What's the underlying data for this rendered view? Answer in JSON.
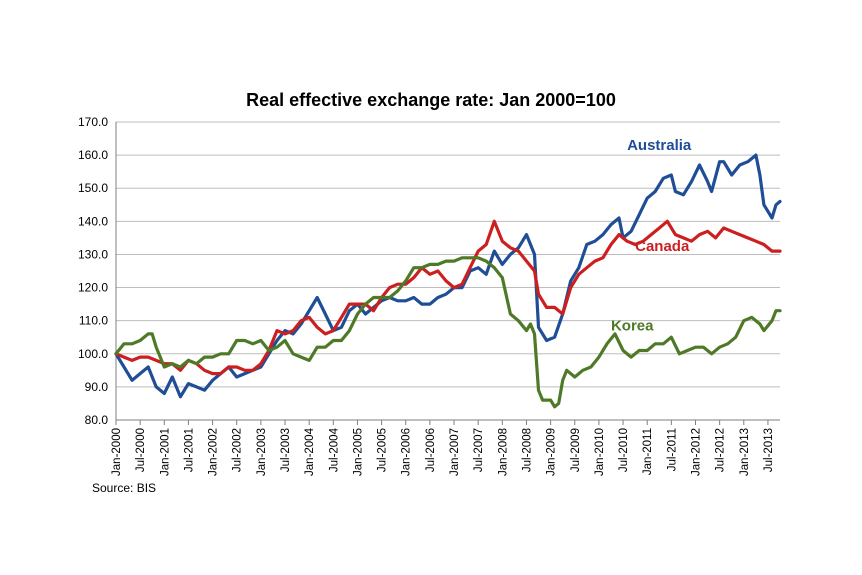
{
  "chart_data": {
    "type": "line",
    "title": "Real effective exchange rate: Jan 2000=100",
    "source": "Source: BIS",
    "ylim": [
      80,
      170
    ],
    "y_ticks": [
      "80.0",
      "90.0",
      "100.0",
      "110.0",
      "120.0",
      "130.0",
      "140.0",
      "150.0",
      "160.0",
      "170.0"
    ],
    "x_tick_labels": [
      "Jan-2000",
      "Jul-2000",
      "Jan-2001",
      "Jul-2001",
      "Jan-2002",
      "Jul-2002",
      "Jan-2003",
      "Jul-2003",
      "Jan-2004",
      "Jul-2004",
      "Jan-2005",
      "Jul-2005",
      "Jan-2006",
      "Jul-2006",
      "Jan-2007",
      "Jul-2007",
      "Jan-2008",
      "Jul-2008",
      "Jan-2009",
      "Jul-2009",
      "Jan-2010",
      "Jul-2010",
      "Jan-2011",
      "Jul-2011",
      "Jan-2012",
      "Jul-2012",
      "Jan-2013",
      "Jul-2013"
    ],
    "x_start": "Jan-2000",
    "x_end": "Oct-2013",
    "grid": true,
    "series": [
      {
        "name": "Australia",
        "color": "#1f4e96",
        "points": [
          [
            "Jan-2000",
            100
          ],
          [
            "Mar-2000",
            96
          ],
          [
            "May-2000",
            92
          ],
          [
            "Jul-2000",
            94
          ],
          [
            "Sep-2000",
            96
          ],
          [
            "Nov-2000",
            90
          ],
          [
            "Jan-2001",
            88
          ],
          [
            "Mar-2001",
            93
          ],
          [
            "May-2001",
            87
          ],
          [
            "Jul-2001",
            91
          ],
          [
            "Sep-2001",
            90
          ],
          [
            "Nov-2001",
            89
          ],
          [
            "Jan-2002",
            92
          ],
          [
            "Mar-2002",
            94
          ],
          [
            "May-2002",
            96
          ],
          [
            "Jul-2002",
            93
          ],
          [
            "Sep-2002",
            94
          ],
          [
            "Nov-2002",
            95
          ],
          [
            "Jan-2003",
            96
          ],
          [
            "Mar-2003",
            100
          ],
          [
            "May-2003",
            104
          ],
          [
            "Jul-2003",
            107
          ],
          [
            "Sep-2003",
            106
          ],
          [
            "Nov-2003",
            109
          ],
          [
            "Jan-2004",
            113
          ],
          [
            "Mar-2004",
            117
          ],
          [
            "May-2004",
            112
          ],
          [
            "Jul-2004",
            107
          ],
          [
            "Sep-2004",
            108
          ],
          [
            "Nov-2004",
            113
          ],
          [
            "Jan-2005",
            115
          ],
          [
            "Mar-2005",
            112
          ],
          [
            "May-2005",
            114
          ],
          [
            "Jul-2005",
            116
          ],
          [
            "Sep-2005",
            117
          ],
          [
            "Nov-2005",
            116
          ],
          [
            "Jan-2006",
            116
          ],
          [
            "Mar-2006",
            117
          ],
          [
            "May-2006",
            115
          ],
          [
            "Jul-2006",
            115
          ],
          [
            "Sep-2006",
            117
          ],
          [
            "Nov-2006",
            118
          ],
          [
            "Jan-2007",
            120
          ],
          [
            "Mar-2007",
            120
          ],
          [
            "May-2007",
            125
          ],
          [
            "Jul-2007",
            126
          ],
          [
            "Sep-2007",
            124
          ],
          [
            "Nov-2007",
            131
          ],
          [
            "Jan-2008",
            127
          ],
          [
            "Mar-2008",
            130
          ],
          [
            "May-2008",
            132
          ],
          [
            "Jul-2008",
            136
          ],
          [
            "Sep-2008",
            130
          ],
          [
            "Oct-2008",
            108
          ],
          [
            "Dec-2008",
            104
          ],
          [
            "Feb-2009",
            105
          ],
          [
            "Apr-2009",
            112
          ],
          [
            "Jun-2009",
            122
          ],
          [
            "Aug-2009",
            126
          ],
          [
            "Oct-2009",
            133
          ],
          [
            "Dec-2009",
            134
          ],
          [
            "Feb-2010",
            136
          ],
          [
            "Apr-2010",
            139
          ],
          [
            "Jun-2010",
            141
          ],
          [
            "Jul-2010",
            135
          ],
          [
            "Sep-2010",
            137
          ],
          [
            "Nov-2010",
            142
          ],
          [
            "Jan-2011",
            147
          ],
          [
            "Mar-2011",
            149
          ],
          [
            "May-2011",
            153
          ],
          [
            "Jul-2011",
            154
          ],
          [
            "Aug-2011",
            149
          ],
          [
            "Oct-2011",
            148
          ],
          [
            "Dec-2011",
            152
          ],
          [
            "Feb-2012",
            157
          ],
          [
            "Apr-2012",
            152
          ],
          [
            "May-2012",
            149
          ],
          [
            "Jul-2012",
            158
          ],
          [
            "Aug-2012",
            158
          ],
          [
            "Oct-2012",
            154
          ],
          [
            "Dec-2012",
            157
          ],
          [
            "Feb-2013",
            158
          ],
          [
            "Apr-2013",
            160
          ],
          [
            "May-2013",
            154
          ],
          [
            "Jun-2013",
            145
          ],
          [
            "Aug-2013",
            141
          ],
          [
            "Sep-2013",
            145
          ],
          [
            "Oct-2013",
            146
          ]
        ]
      },
      {
        "name": "Canada",
        "color": "#cc1f1f",
        "points": [
          [
            "Jan-2000",
            100
          ],
          [
            "Mar-2000",
            99
          ],
          [
            "May-2000",
            98
          ],
          [
            "Jul-2000",
            99
          ],
          [
            "Sep-2000",
            99
          ],
          [
            "Nov-2000",
            98
          ],
          [
            "Jan-2001",
            97
          ],
          [
            "Mar-2001",
            97
          ],
          [
            "May-2001",
            95
          ],
          [
            "Jul-2001",
            98
          ],
          [
            "Sep-2001",
            97
          ],
          [
            "Nov-2001",
            95
          ],
          [
            "Jan-2002",
            94
          ],
          [
            "Mar-2002",
            94
          ],
          [
            "May-2002",
            96
          ],
          [
            "Jul-2002",
            96
          ],
          [
            "Sep-2002",
            95
          ],
          [
            "Nov-2002",
            95
          ],
          [
            "Jan-2003",
            97
          ],
          [
            "Mar-2003",
            101
          ],
          [
            "May-2003",
            107
          ],
          [
            "Jul-2003",
            106
          ],
          [
            "Sep-2003",
            107
          ],
          [
            "Nov-2003",
            110
          ],
          [
            "Jan-2004",
            111
          ],
          [
            "Mar-2004",
            108
          ],
          [
            "May-2004",
            106
          ],
          [
            "Jul-2004",
            107
          ],
          [
            "Sep-2004",
            111
          ],
          [
            "Nov-2004",
            115
          ],
          [
            "Jan-2005",
            115
          ],
          [
            "Mar-2005",
            115
          ],
          [
            "May-2005",
            113
          ],
          [
            "Jul-2005",
            117
          ],
          [
            "Sep-2005",
            120
          ],
          [
            "Nov-2005",
            121
          ],
          [
            "Jan-2006",
            121
          ],
          [
            "Mar-2006",
            123
          ],
          [
            "May-2006",
            126
          ],
          [
            "Jul-2006",
            124
          ],
          [
            "Sep-2006",
            125
          ],
          [
            "Nov-2006",
            122
          ],
          [
            "Jan-2007",
            120
          ],
          [
            "Mar-2007",
            121
          ],
          [
            "May-2007",
            126
          ],
          [
            "Jul-2007",
            131
          ],
          [
            "Sep-2007",
            133
          ],
          [
            "Nov-2007",
            140
          ],
          [
            "Jan-2008",
            134
          ],
          [
            "Mar-2008",
            132
          ],
          [
            "May-2008",
            131
          ],
          [
            "Jul-2008",
            128
          ],
          [
            "Sep-2008",
            125
          ],
          [
            "Oct-2008",
            118
          ],
          [
            "Dec-2008",
            114
          ],
          [
            "Feb-2009",
            114
          ],
          [
            "Apr-2009",
            112
          ],
          [
            "Jun-2009",
            120
          ],
          [
            "Aug-2009",
            124
          ],
          [
            "Oct-2009",
            126
          ],
          [
            "Dec-2009",
            128
          ],
          [
            "Feb-2010",
            129
          ],
          [
            "Apr-2010",
            133
          ],
          [
            "Jun-2010",
            136
          ],
          [
            "Aug-2010",
            134
          ],
          [
            "Oct-2010",
            133
          ],
          [
            "Dec-2010",
            134
          ],
          [
            "Feb-2011",
            136
          ],
          [
            "Apr-2011",
            138
          ],
          [
            "Jun-2011",
            140
          ],
          [
            "Aug-2011",
            136
          ],
          [
            "Oct-2011",
            135
          ],
          [
            "Dec-2011",
            134
          ],
          [
            "Feb-2012",
            136
          ],
          [
            "Apr-2012",
            137
          ],
          [
            "Jun-2012",
            135
          ],
          [
            "Aug-2012",
            138
          ],
          [
            "Oct-2012",
            137
          ],
          [
            "Dec-2012",
            136
          ],
          [
            "Feb-2013",
            135
          ],
          [
            "Apr-2013",
            134
          ],
          [
            "Jun-2013",
            133
          ],
          [
            "Aug-2013",
            131
          ],
          [
            "Oct-2013",
            131
          ]
        ]
      },
      {
        "name": "Korea",
        "color": "#4e7a27",
        "points": [
          [
            "Jan-2000",
            100
          ],
          [
            "Mar-2000",
            103
          ],
          [
            "May-2000",
            103
          ],
          [
            "Jul-2000",
            104
          ],
          [
            "Sep-2000",
            106
          ],
          [
            "Oct-2000",
            106
          ],
          [
            "Nov-2000",
            102
          ],
          [
            "Jan-2001",
            96
          ],
          [
            "Mar-2001",
            97
          ],
          [
            "May-2001",
            96
          ],
          [
            "Jul-2001",
            98
          ],
          [
            "Sep-2001",
            97
          ],
          [
            "Nov-2001",
            99
          ],
          [
            "Jan-2002",
            99
          ],
          [
            "Mar-2002",
            100
          ],
          [
            "May-2002",
            100
          ],
          [
            "Jul-2002",
            104
          ],
          [
            "Sep-2002",
            104
          ],
          [
            "Nov-2002",
            103
          ],
          [
            "Jan-2003",
            104
          ],
          [
            "Mar-2003",
            101
          ],
          [
            "May-2003",
            102
          ],
          [
            "Jul-2003",
            104
          ],
          [
            "Sep-2003",
            100
          ],
          [
            "Nov-2003",
            99
          ],
          [
            "Jan-2004",
            98
          ],
          [
            "Mar-2004",
            102
          ],
          [
            "May-2004",
            102
          ],
          [
            "Jul-2004",
            104
          ],
          [
            "Sep-2004",
            104
          ],
          [
            "Nov-2004",
            107
          ],
          [
            "Jan-2005",
            112
          ],
          [
            "Mar-2005",
            115
          ],
          [
            "May-2005",
            117
          ],
          [
            "Jul-2005",
            117
          ],
          [
            "Sep-2005",
            117
          ],
          [
            "Nov-2005",
            119
          ],
          [
            "Jan-2006",
            122
          ],
          [
            "Mar-2006",
            126
          ],
          [
            "May-2006",
            126
          ],
          [
            "Jul-2006",
            127
          ],
          [
            "Sep-2006",
            127
          ],
          [
            "Nov-2006",
            128
          ],
          [
            "Jan-2007",
            128
          ],
          [
            "Mar-2007",
            129
          ],
          [
            "May-2007",
            129
          ],
          [
            "Jul-2007",
            129
          ],
          [
            "Sep-2007",
            128
          ],
          [
            "Nov-2007",
            126
          ],
          [
            "Jan-2008",
            123
          ],
          [
            "Mar-2008",
            112
          ],
          [
            "May-2008",
            110
          ],
          [
            "Jul-2008",
            107
          ],
          [
            "Aug-2008",
            109
          ],
          [
            "Sep-2008",
            106
          ],
          [
            "Oct-2008",
            89
          ],
          [
            "Nov-2008",
            86
          ],
          [
            "Jan-2009",
            86
          ],
          [
            "Feb-2009",
            84
          ],
          [
            "Mar-2009",
            85
          ],
          [
            "Apr-2009",
            92
          ],
          [
            "May-2009",
            95
          ],
          [
            "Jul-2009",
            93
          ],
          [
            "Sep-2009",
            95
          ],
          [
            "Nov-2009",
            96
          ],
          [
            "Jan-2010",
            99
          ],
          [
            "Mar-2010",
            103
          ],
          [
            "May-2010",
            106
          ],
          [
            "Jul-2010",
            101
          ],
          [
            "Sep-2010",
            99
          ],
          [
            "Nov-2010",
            101
          ],
          [
            "Jan-2011",
            101
          ],
          [
            "Mar-2011",
            103
          ],
          [
            "May-2011",
            103
          ],
          [
            "Jul-2011",
            105
          ],
          [
            "Sep-2011",
            100
          ],
          [
            "Nov-2011",
            101
          ],
          [
            "Jan-2012",
            102
          ],
          [
            "Mar-2012",
            102
          ],
          [
            "May-2012",
            100
          ],
          [
            "Jul-2012",
            102
          ],
          [
            "Sep-2012",
            103
          ],
          [
            "Nov-2012",
            105
          ],
          [
            "Jan-2013",
            110
          ],
          [
            "Mar-2013",
            111
          ],
          [
            "May-2013",
            109
          ],
          [
            "Jun-2013",
            107
          ],
          [
            "Aug-2013",
            110
          ],
          [
            "Sep-2013",
            113
          ],
          [
            "Oct-2013",
            113
          ]
        ]
      }
    ]
  }
}
